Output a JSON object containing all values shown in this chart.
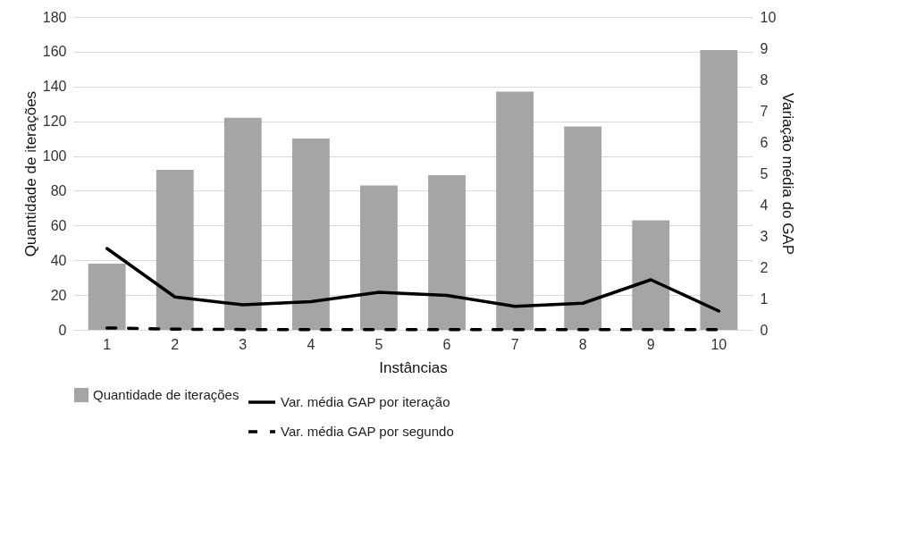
{
  "chart_data": {
    "type": "bar",
    "xlabel": "Instâncias",
    "ylabel": "Quantidade de iterações",
    "y2label": "Variação média do GAP",
    "categories": [
      "1",
      "2",
      "3",
      "4",
      "5",
      "6",
      "7",
      "8",
      "9",
      "10"
    ],
    "series": [
      {
        "name": "Quantidade de iterações",
        "color": "#a5a5a5",
        "values": [
          38,
          92,
          122,
          110,
          83,
          89,
          137,
          117,
          63,
          161
        ]
      },
      {
        "name": "Var. média GAP por iteração",
        "type": "line",
        "axis": "y2",
        "color": "#000000",
        "line_style": "solid",
        "values": [
          2.6,
          1.05,
          0.8,
          0.9,
          1.2,
          1.1,
          0.75,
          0.85,
          1.6,
          0.6
        ]
      },
      {
        "name": "Var. média GAP por segundo",
        "type": "line",
        "axis": "y2",
        "color": "#000000",
        "line_style": "dashed",
        "values": [
          0.06,
          0.02,
          0.01,
          0.01,
          0.01,
          0.01,
          0.01,
          0.01,
          0.01,
          0.01
        ]
      }
    ],
    "ylim": [
      0,
      180
    ],
    "yticks": [
      0,
      20,
      40,
      60,
      80,
      100,
      120,
      140,
      160,
      180
    ],
    "y2lim": [
      0,
      10
    ],
    "y2ticks": [
      0,
      1,
      2,
      3,
      4,
      5,
      6,
      7,
      8,
      9,
      10
    ],
    "grid": "y",
    "legend": "bottom",
    "marker": "none"
  }
}
